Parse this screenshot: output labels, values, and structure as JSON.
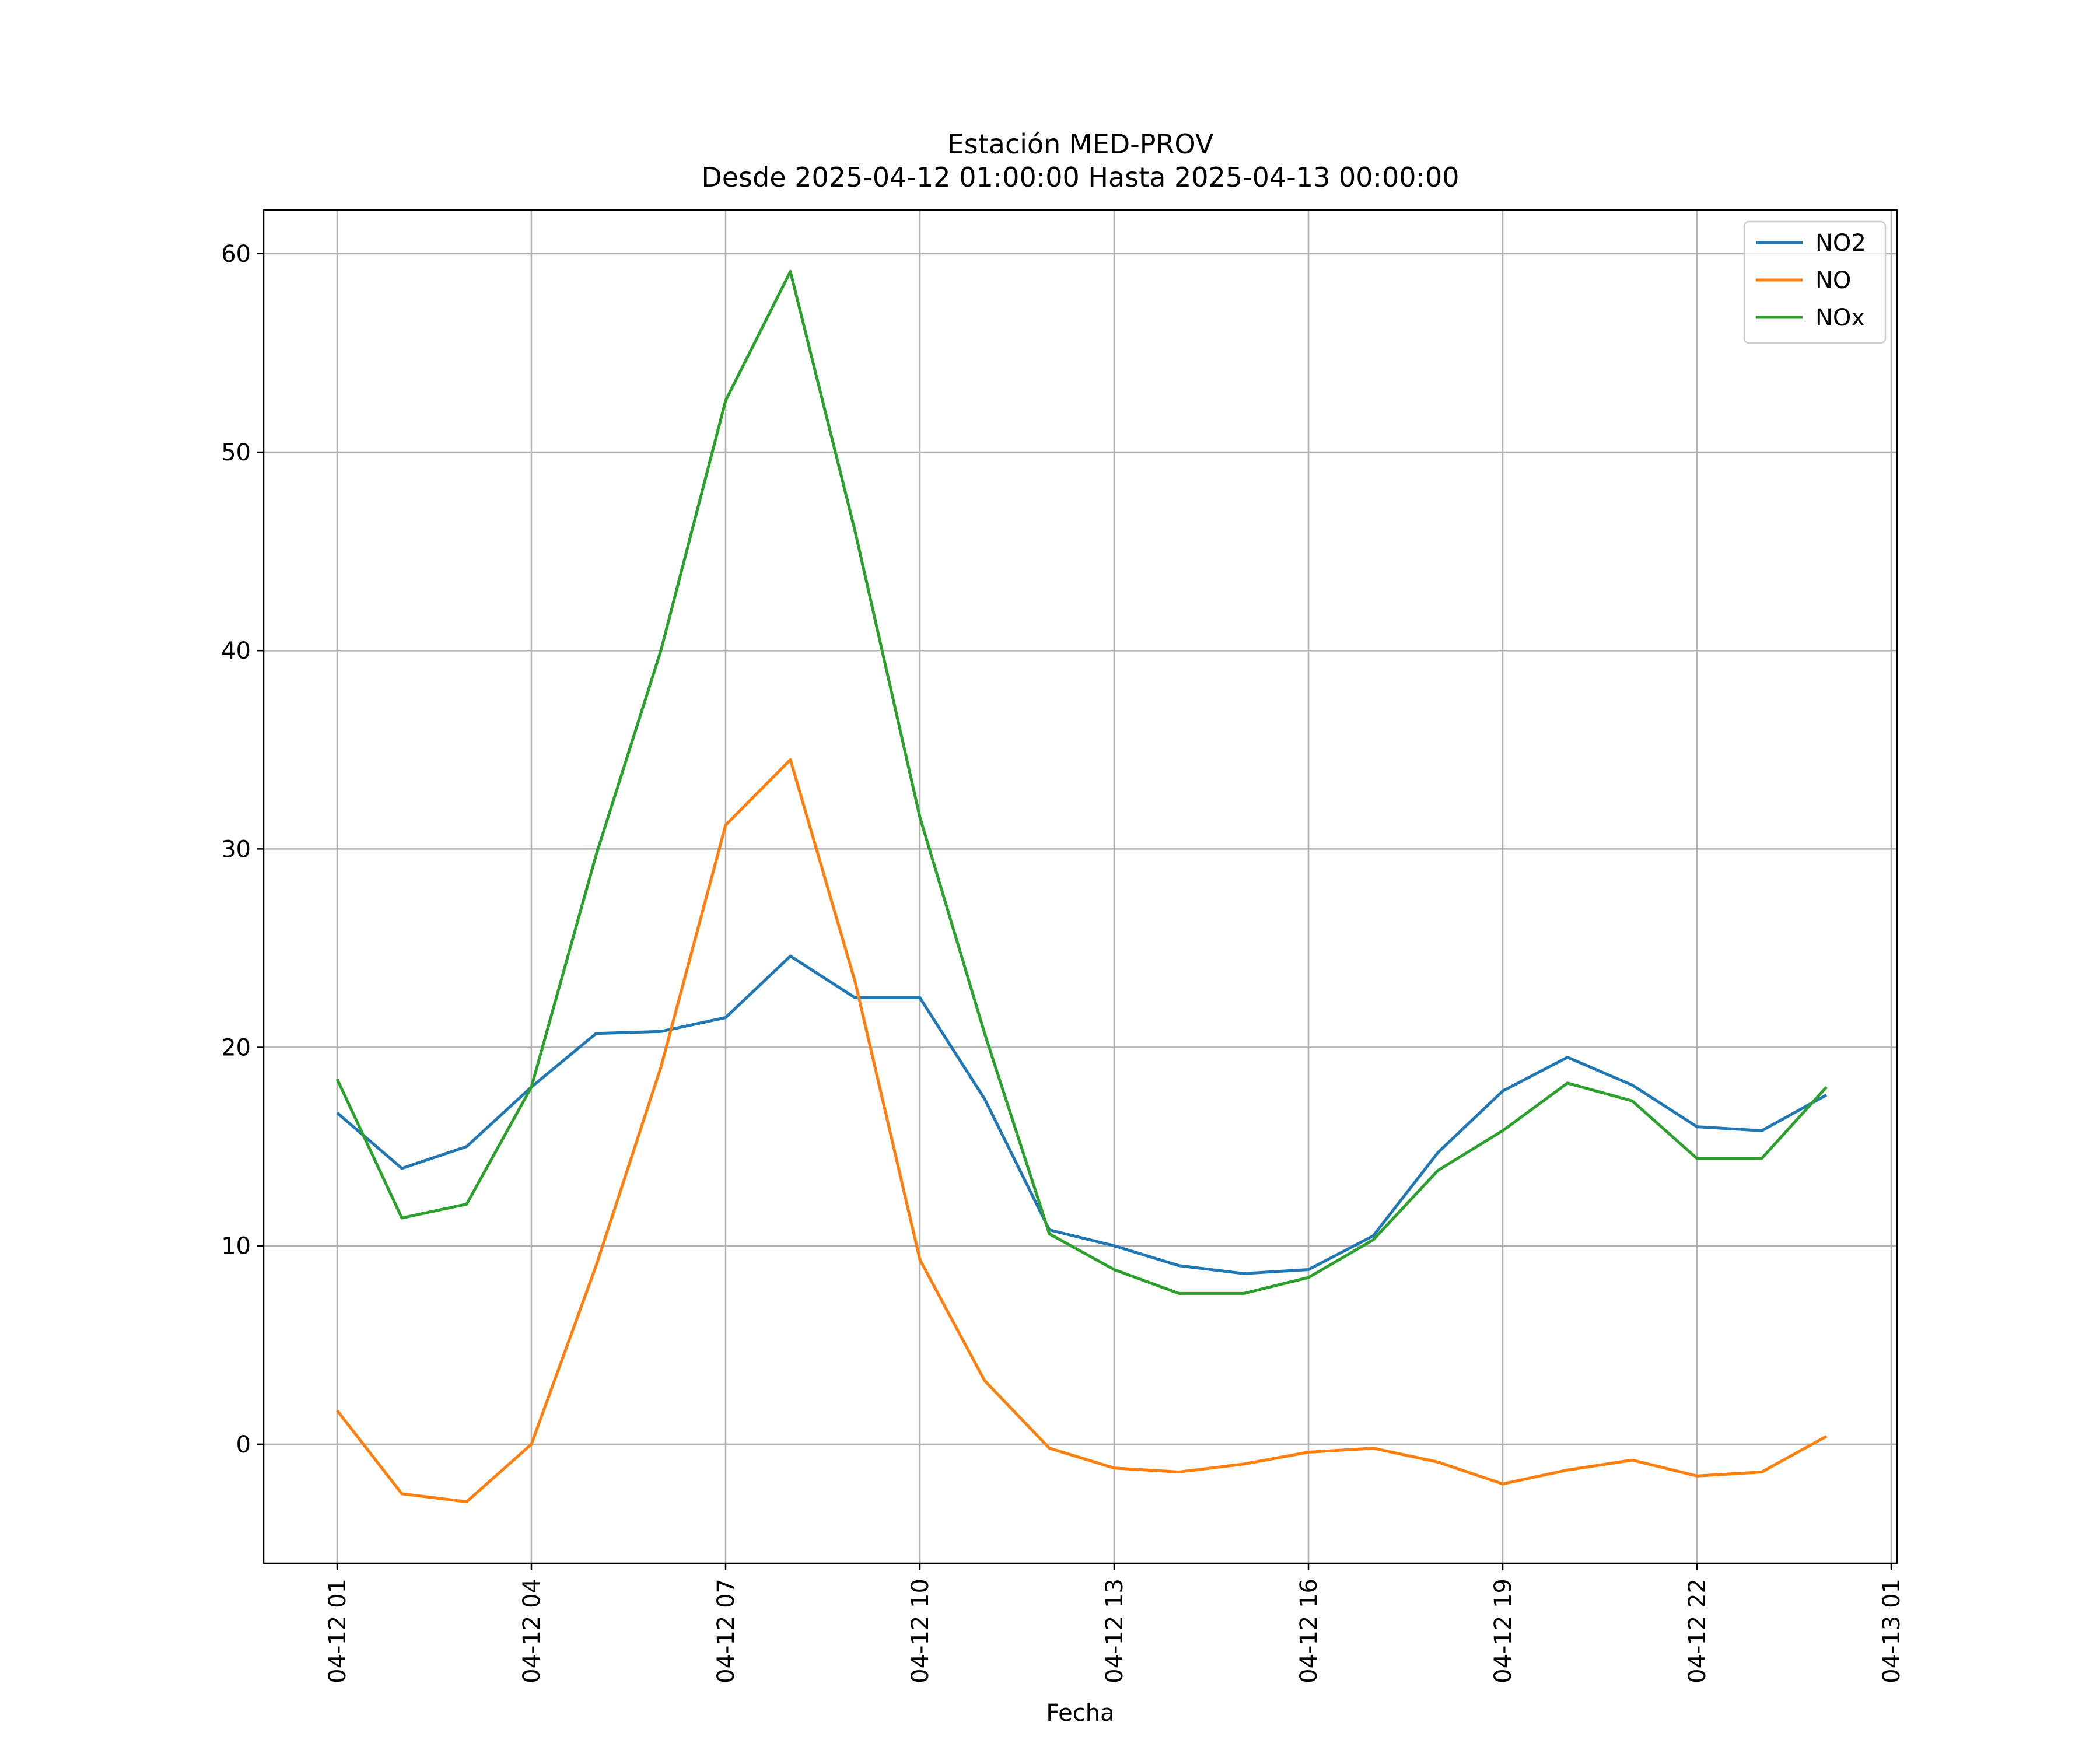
{
  "chart_data": {
    "type": "line",
    "title": "Estación MED-PROV",
    "subtitle": "Desde 2025-04-12 01:00:00 Hasta 2025-04-13 00:00:00",
    "xlabel": "Fecha",
    "ylabel": "",
    "x": [
      "04-12 01",
      "04-12 02",
      "04-12 03",
      "04-12 04",
      "04-12 05",
      "04-12 06",
      "04-12 07",
      "04-12 08",
      "04-12 09",
      "04-12 10",
      "04-12 11",
      "04-12 12",
      "04-12 13",
      "04-12 14",
      "04-12 15",
      "04-12 16",
      "04-12 17",
      "04-12 18",
      "04-12 19",
      "04-12 20",
      "04-12 21",
      "04-12 22",
      "04-12 23",
      "04-13 00"
    ],
    "xticks": [
      "04-12 01",
      "04-12 04",
      "04-12 07",
      "04-12 10",
      "04-12 13",
      "04-12 16",
      "04-12 19",
      "04-12 22",
      "04-13 01"
    ],
    "yticks": [
      0,
      10,
      20,
      30,
      40,
      50,
      60
    ],
    "ylim": [
      -6,
      62.2
    ],
    "grid": true,
    "legend_position": "top-right",
    "series": [
      {
        "name": "NO2",
        "color": "#1f77b4",
        "values": [
          16.7,
          13.9,
          15.0,
          18.0,
          20.7,
          20.8,
          21.5,
          24.6,
          22.5,
          22.5,
          17.4,
          10.8,
          10.0,
          9.0,
          8.6,
          8.8,
          10.5,
          14.7,
          17.8,
          19.5,
          18.1,
          16.0,
          15.8,
          17.6
        ]
      },
      {
        "name": "NO",
        "color": "#ff7f0e",
        "values": [
          1.7,
          -2.5,
          -2.9,
          0.0,
          9.0,
          19.0,
          31.2,
          34.5,
          23.3,
          9.3,
          3.2,
          -0.2,
          -1.2,
          -1.4,
          -1.0,
          -0.4,
          -0.2,
          -0.9,
          -2.0,
          -1.3,
          -0.8,
          -1.6,
          -1.4,
          0.4
        ]
      },
      {
        "name": "NOx",
        "color": "#2ca02c",
        "values": [
          18.4,
          11.4,
          12.1,
          18.0,
          29.7,
          40.0,
          52.6,
          59.1,
          46.0,
          31.6,
          20.7,
          10.6,
          8.8,
          7.6,
          7.6,
          8.4,
          10.3,
          13.8,
          15.8,
          18.2,
          17.3,
          14.4,
          14.4,
          18.0
        ]
      }
    ]
  }
}
